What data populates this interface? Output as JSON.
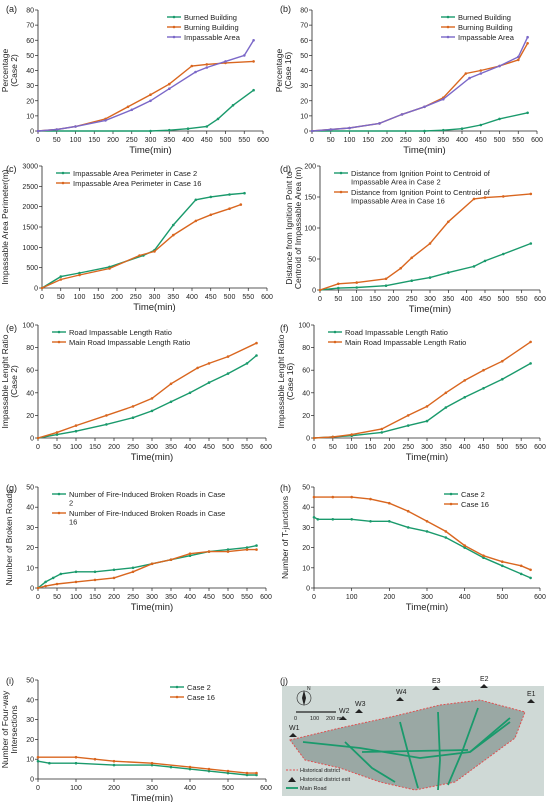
{
  "colors": {
    "green": "#1a9a6c",
    "orange": "#d9661f",
    "purple": "#7b68c8",
    "axis": "#222222",
    "map_bg": "#cfd9d6",
    "map_district": "#9aa8a4",
    "map_road": "#1a9a6c",
    "map_boundary": "#e05050"
  },
  "chart_data": [
    {
      "id": "a",
      "panel_label": "(a)",
      "type": "line",
      "ylabel": "Percentage\n(Case 2)",
      "xlabel": "Time(min)",
      "xlim": [
        0,
        600
      ],
      "ylim": [
        0,
        80
      ],
      "xticks": [
        0,
        50,
        100,
        150,
        200,
        250,
        300,
        350,
        400,
        450,
        500,
        550,
        600
      ],
      "yticks": [
        0,
        10,
        20,
        30,
        40,
        50,
        60,
        70,
        80
      ],
      "legend_position": "top-right",
      "series": [
        {
          "name": "Burned Building",
          "color": "green",
          "x": [
            0,
            300,
            350,
            400,
            450,
            480,
            520,
            575
          ],
          "y": [
            0,
            0,
            0.5,
            1.5,
            3,
            8,
            17,
            27
          ]
        },
        {
          "name": "Burning Building",
          "color": "orange",
          "x": [
            0,
            50,
            100,
            180,
            240,
            300,
            350,
            410,
            450,
            500,
            575
          ],
          "y": [
            0,
            1,
            3,
            8,
            16,
            24,
            31,
            43,
            44,
            45,
            46
          ]
        },
        {
          "name": "Impassable Area",
          "color": "purple",
          "x": [
            0,
            50,
            100,
            180,
            250,
            300,
            350,
            420,
            450,
            500,
            550,
            575
          ],
          "y": [
            0,
            1,
            3,
            7,
            14,
            20,
            28,
            39,
            42,
            46,
            50,
            60
          ]
        }
      ]
    },
    {
      "id": "b",
      "panel_label": "(b)",
      "type": "line",
      "ylabel": "Percentage\n(Case 16)",
      "xlabel": "Time(min)",
      "xlim": [
        0,
        600
      ],
      "ylim": [
        0,
        80
      ],
      "xticks": [
        0,
        50,
        100,
        150,
        200,
        250,
        300,
        350,
        400,
        450,
        500,
        550,
        600
      ],
      "yticks": [
        0,
        10,
        20,
        30,
        40,
        50,
        60,
        70,
        80
      ],
      "legend_position": "top-right",
      "series": [
        {
          "name": "Burned Building",
          "color": "green",
          "x": [
            0,
            300,
            350,
            400,
            450,
            500,
            575
          ],
          "y": [
            0,
            0,
            0.5,
            1.5,
            4,
            8,
            12
          ]
        },
        {
          "name": "Burning Building",
          "color": "orange",
          "x": [
            0,
            50,
            100,
            180,
            240,
            300,
            350,
            410,
            450,
            500,
            550,
            575
          ],
          "y": [
            0,
            1,
            2,
            5,
            11,
            16,
            22,
            38,
            40,
            43,
            47,
            58
          ]
        },
        {
          "name": "Impassable Area",
          "color": "purple",
          "x": [
            0,
            50,
            100,
            180,
            240,
            300,
            350,
            420,
            450,
            500,
            550,
            575
          ],
          "y": [
            0,
            1,
            2,
            5,
            11,
            16,
            21,
            35,
            38,
            43,
            49,
            62
          ]
        }
      ]
    },
    {
      "id": "c",
      "panel_label": "(c)",
      "type": "line",
      "ylabel": "Impassable Area Perimeter(m)",
      "xlabel": "Time(min)",
      "xlim": [
        0,
        600
      ],
      "ylim": [
        0,
        3000
      ],
      "xticks": [
        0,
        50,
        100,
        150,
        200,
        250,
        300,
        350,
        400,
        450,
        500,
        550,
        600
      ],
      "yticks": [
        0,
        500,
        1000,
        1500,
        2000,
        2500,
        3000
      ],
      "legend_position": "top-left",
      "series": [
        {
          "name": "Impassable Area Perimeter in Case 2",
          "color": "green",
          "x": [
            0,
            50,
            100,
            180,
            270,
            300,
            350,
            410,
            450,
            500,
            540
          ],
          "y": [
            0,
            280,
            370,
            520,
            800,
            930,
            1550,
            2170,
            2240,
            2300,
            2330
          ]
        },
        {
          "name": "Impassable Area Perimeter in Case 16",
          "color": "orange",
          "x": [
            0,
            50,
            100,
            180,
            260,
            300,
            350,
            410,
            450,
            500,
            530
          ],
          "y": [
            0,
            210,
            320,
            480,
            800,
            900,
            1300,
            1650,
            1800,
            1950,
            2050
          ]
        }
      ]
    },
    {
      "id": "d",
      "panel_label": "(d)",
      "type": "line",
      "ylabel": "Distance from Ignition Point to\nCentroid of Impassable Area (m)",
      "xlabel": "Time(min)",
      "xlim": [
        0,
        600
      ],
      "ylim": [
        0,
        200
      ],
      "xticks": [
        0,
        50,
        100,
        150,
        200,
        250,
        300,
        350,
        400,
        450,
        500,
        550,
        600
      ],
      "yticks": [
        0,
        50,
        100,
        150,
        200
      ],
      "legend_position": "top-left",
      "series": [
        {
          "name": "Distance from Ignition Point to Centroid of Impassable Area in Case 2",
          "color": "green",
          "x": [
            0,
            50,
            100,
            180,
            250,
            300,
            350,
            420,
            450,
            500,
            575
          ],
          "y": [
            0,
            3,
            4,
            7,
            15,
            20,
            28,
            38,
            47,
            58,
            75
          ]
        },
        {
          "name": "Distance from Ignition Point to Centroid of Impassable Area in Case 16",
          "color": "orange",
          "x": [
            0,
            50,
            100,
            180,
            220,
            250,
            300,
            350,
            420,
            450,
            500,
            575
          ],
          "y": [
            0,
            10,
            12,
            18,
            35,
            52,
            75,
            110,
            147,
            149,
            151,
            155
          ]
        }
      ]
    },
    {
      "id": "e",
      "panel_label": "(e)",
      "type": "line",
      "ylabel": "Impassable Lenght Ratio\n(Case 2)",
      "xlabel": "Time(min)",
      "xlim": [
        0,
        600
      ],
      "ylim": [
        0,
        100
      ],
      "xticks": [
        0,
        50,
        100,
        150,
        200,
        250,
        300,
        350,
        400,
        450,
        500,
        550,
        600
      ],
      "yticks": [
        0,
        20,
        40,
        60,
        80,
        100
      ],
      "legend_position": "top-left",
      "series": [
        {
          "name": "Road Impassable Length Ratio",
          "color": "green",
          "x": [
            0,
            50,
            100,
            180,
            250,
            300,
            350,
            400,
            450,
            500,
            550,
            575
          ],
          "y": [
            0,
            3,
            6,
            12,
            18,
            24,
            32,
            40,
            49,
            57,
            66,
            73
          ]
        },
        {
          "name": "Main Road Impassable Length Ratio",
          "color": "orange",
          "x": [
            0,
            50,
            100,
            180,
            250,
            300,
            350,
            420,
            450,
            500,
            575
          ],
          "y": [
            0,
            5,
            11,
            20,
            28,
            35,
            48,
            62,
            66,
            72,
            84
          ]
        }
      ]
    },
    {
      "id": "f",
      "panel_label": "(f)",
      "type": "line",
      "ylabel": "Impassable Lenght Ratio\n(Case 16)",
      "xlabel": "Time(min)",
      "xlim": [
        0,
        600
      ],
      "ylim": [
        0,
        100
      ],
      "xticks": [
        0,
        50,
        100,
        150,
        200,
        250,
        300,
        350,
        400,
        450,
        500,
        550,
        600
      ],
      "yticks": [
        0,
        20,
        40,
        60,
        80,
        100
      ],
      "legend_position": "top-left",
      "series": [
        {
          "name": "Road Impassable Length Ratio",
          "color": "green",
          "x": [
            0,
            50,
            100,
            180,
            250,
            300,
            350,
            400,
            450,
            500,
            575
          ],
          "y": [
            0,
            1,
            2,
            5,
            11,
            15,
            27,
            36,
            44,
            52,
            66
          ]
        },
        {
          "name": "Main Road Impassable Length Ratio",
          "color": "orange",
          "x": [
            0,
            50,
            100,
            180,
            250,
            300,
            350,
            400,
            450,
            500,
            575
          ],
          "y": [
            0,
            1,
            3,
            8,
            20,
            28,
            40,
            51,
            60,
            68,
            85
          ]
        }
      ]
    },
    {
      "id": "g",
      "panel_label": "(g)",
      "type": "line",
      "ylabel": "Number of Broken Roads",
      "xlabel": "Time(min)",
      "xlim": [
        0,
        600
      ],
      "ylim": [
        0,
        50
      ],
      "xticks": [
        0,
        50,
        100,
        150,
        200,
        250,
        300,
        350,
        400,
        450,
        500,
        550,
        600
      ],
      "yticks": [
        0,
        10,
        20,
        30,
        40,
        50
      ],
      "legend_position": "top-left",
      "series": [
        {
          "name": "Number of Fire-Induced Broken Roads in Case 2",
          "color": "green",
          "x": [
            0,
            20,
            40,
            60,
            100,
            150,
            200,
            250,
            300,
            350,
            400,
            450,
            500,
            550,
            575
          ],
          "y": [
            0,
            3,
            5,
            7,
            8,
            8,
            9,
            10,
            12,
            14,
            16,
            18,
            19,
            20,
            21
          ]
        },
        {
          "name": "Number of Fire-Induced Broken Roads in Case 16",
          "color": "orange",
          "x": [
            0,
            20,
            50,
            100,
            150,
            200,
            250,
            300,
            350,
            400,
            450,
            500,
            550,
            575
          ],
          "y": [
            0,
            1,
            2,
            3,
            4,
            5,
            8,
            12,
            14,
            17,
            18,
            18,
            19,
            19
          ]
        }
      ]
    },
    {
      "id": "h",
      "panel_label": "(h)",
      "type": "line",
      "ylabel": "Number of T-junctions",
      "xlabel": "Time(min)",
      "xlim": [
        0,
        600
      ],
      "ylim": [
        0,
        50
      ],
      "xticks": [
        0,
        100,
        200,
        300,
        400,
        500,
        600
      ],
      "yticks": [
        0,
        10,
        20,
        30,
        40,
        50
      ],
      "legend_position": "top-right",
      "series": [
        {
          "name": "Case 2",
          "color": "green",
          "x": [
            0,
            10,
            50,
            100,
            150,
            200,
            250,
            300,
            350,
            400,
            450,
            500,
            550,
            575
          ],
          "y": [
            35,
            34,
            34,
            34,
            33,
            33,
            30,
            28,
            25,
            20,
            15,
            11,
            7,
            5
          ]
        },
        {
          "name": "Case 16",
          "color": "orange",
          "x": [
            0,
            50,
            100,
            150,
            200,
            250,
            300,
            350,
            400,
            450,
            500,
            550,
            575
          ],
          "y": [
            45,
            45,
            45,
            44,
            42,
            38,
            33,
            28,
            21,
            16,
            13,
            11,
            9
          ]
        }
      ]
    },
    {
      "id": "i",
      "panel_label": "(i)",
      "type": "line",
      "ylabel": "Number of Four-way\nIntersections",
      "xlabel": "Time(min)",
      "xlim": [
        0,
        600
      ],
      "ylim": [
        0,
        50
      ],
      "xticks": [
        0,
        100,
        200,
        300,
        400,
        500,
        600
      ],
      "yticks": [
        0,
        10,
        20,
        30,
        40,
        50
      ],
      "legend_position": "top-right",
      "series": [
        {
          "name": "Case 2",
          "color": "green",
          "x": [
            0,
            30,
            100,
            200,
            300,
            350,
            400,
            450,
            500,
            550,
            575
          ],
          "y": [
            9,
            8,
            8,
            7,
            7,
            6,
            5,
            4,
            3,
            2,
            2
          ]
        },
        {
          "name": "Case 16",
          "color": "orange",
          "x": [
            0,
            100,
            150,
            200,
            300,
            400,
            450,
            500,
            550,
            575
          ],
          "y": [
            11,
            11,
            10,
            9,
            8,
            6,
            5,
            4,
            3,
            3
          ]
        }
      ]
    }
  ],
  "map": {
    "panel_label": "(j)",
    "exits": [
      "W1",
      "W2",
      "W3",
      "W4",
      "E3",
      "E2",
      "E1"
    ],
    "scale": {
      "zero": "0",
      "mid": "100",
      "end": "200 m"
    },
    "north": "N",
    "legend": [
      "Historical district",
      "Historical district exit",
      "Main Road"
    ]
  }
}
